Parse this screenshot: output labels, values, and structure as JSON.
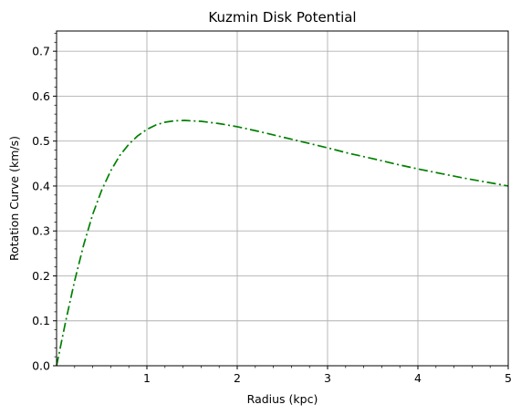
{
  "chart_data": {
    "type": "line",
    "title": "Kuzmin Disk Potential",
    "xlabel": "Radius (kpc)",
    "ylabel": "Rotation Curve (km/s)",
    "xlim": [
      0,
      5
    ],
    "ylim": [
      0,
      0.745
    ],
    "xticks": [
      1,
      2,
      3,
      4,
      5
    ],
    "xtick_labels": [
      "1",
      "2",
      "3",
      "4",
      "5"
    ],
    "yticks": [
      0.0,
      0.1,
      0.2,
      0.3,
      0.4,
      0.5,
      0.6,
      0.7
    ],
    "ytick_labels": [
      "0.0",
      "0.1",
      "0.2",
      "0.3",
      "0.4",
      "0.5",
      "0.6",
      "0.7"
    ],
    "grid": true,
    "series": [
      {
        "color": "#008000",
        "line_style": "dash-dot",
        "x": [
          0,
          0.1,
          0.2,
          0.3,
          0.4,
          0.5,
          0.6,
          0.7,
          0.8,
          0.9,
          1.0,
          1.1,
          1.2,
          1.3,
          1.414,
          1.5,
          1.6,
          1.8,
          2.0,
          2.25,
          2.5,
          2.75,
          3.0,
          3.25,
          3.5,
          3.75,
          4.0,
          4.25,
          4.5,
          4.75,
          5.0
        ],
        "y": [
          0,
          0.098,
          0.189,
          0.269,
          0.337,
          0.391,
          0.434,
          0.468,
          0.493,
          0.512,
          0.526,
          0.536,
          0.542,
          0.545,
          0.546,
          0.545,
          0.544,
          0.539,
          0.532,
          0.521,
          0.509,
          0.497,
          0.485,
          0.472,
          0.461,
          0.449,
          0.438,
          0.428,
          0.418,
          0.409,
          0.4
        ]
      }
    ]
  }
}
